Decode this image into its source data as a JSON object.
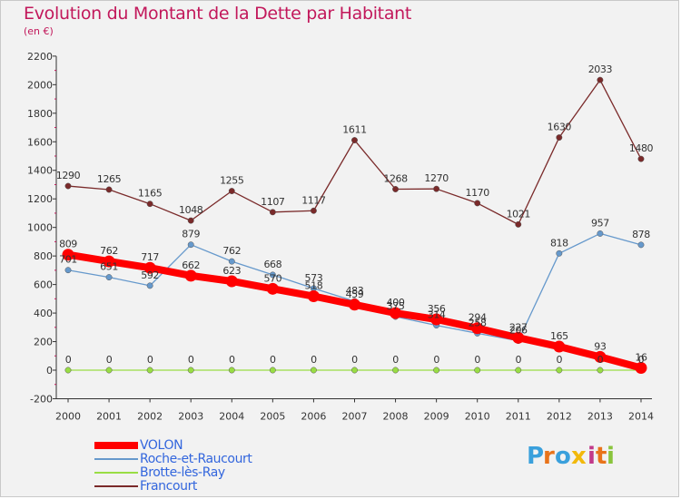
{
  "title": "Evolution du Montant de la Dette par Habitant",
  "subtitle": "(en €)",
  "chart_data": {
    "type": "line",
    "title": "Evolution du Montant de la Dette par Habitant",
    "subtitle": "(en €)",
    "x": [
      2000,
      2001,
      2002,
      2003,
      2004,
      2005,
      2006,
      2007,
      2008,
      2009,
      2010,
      2011,
      2012,
      2013,
      2014
    ],
    "ylim": [
      -200,
      2200
    ],
    "yticks": [
      -200,
      0,
      200,
      400,
      600,
      800,
      1000,
      1200,
      1400,
      1600,
      1800,
      2000,
      2200
    ],
    "grid": false,
    "legend_position": "bottom-left",
    "series": [
      {
        "name": "VOLON",
        "color": "#ff0000",
        "values": [
          809,
          762,
          717,
          662,
          623,
          570,
          518,
          459,
          400,
          356,
          294,
          227,
          165,
          93,
          16
        ]
      },
      {
        "name": "Roche-et-Raucourt",
        "color": "#6699cc",
        "values": [
          701,
          651,
          592,
          879,
          762,
          668,
          573,
          483,
          375,
          314,
          258,
          206,
          818,
          957,
          878
        ]
      },
      {
        "name": "Brotte-lès-Ray",
        "color": "#99dd44",
        "values": [
          0,
          0,
          0,
          0,
          0,
          0,
          0,
          0,
          0,
          0,
          0,
          0,
          0,
          0,
          0
        ]
      },
      {
        "name": "Francourt",
        "color": "#7a2a2a",
        "values": [
          1290,
          1265,
          1165,
          1048,
          1255,
          1107,
          1117,
          1611,
          1268,
          1270,
          1170,
          1021,
          1630,
          2033,
          1480
        ]
      }
    ]
  },
  "legend": [
    {
      "label": "VOLON",
      "color": "#ff0000",
      "weight": 8
    },
    {
      "label": "Roche-et-Raucourt",
      "color": "#6699cc",
      "weight": 2
    },
    {
      "label": "Brotte-lès-Ray",
      "color": "#99dd44",
      "weight": 2
    },
    {
      "label": "Francourt",
      "color": "#7a2a2a",
      "weight": 2
    }
  ],
  "logo": {
    "text": "Proxiti",
    "letters": [
      "P",
      "r",
      "o",
      "x",
      "i",
      "t",
      "i"
    ],
    "colors": [
      "#3aa0dc",
      "#e8731a",
      "#3aa0dc",
      "#f2b90c",
      "#c23a8a",
      "#e8731a",
      "#8ac43c"
    ]
  }
}
